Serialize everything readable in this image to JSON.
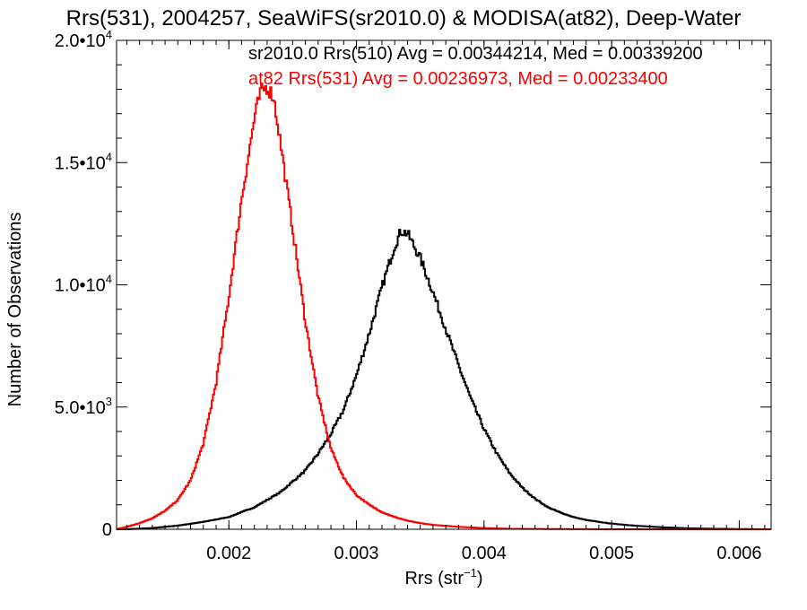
{
  "chart_data": {
    "type": "line",
    "title": "Rrs(531), 2004257, SeaWiFS(sr2010.0) & MODISA(at82), Deep-Water",
    "xlabel": {
      "base": "Rrs (str",
      "sup": "−1",
      "close": ")"
    },
    "ylabel": "Number of Observations",
    "xlim": [
      0.00112,
      0.00625
    ],
    "ylim": [
      0,
      20000
    ],
    "x_ticks": [
      {
        "value": 0.002,
        "label": "0.002"
      },
      {
        "value": 0.003,
        "label": "0.003"
      },
      {
        "value": 0.004,
        "label": "0.004"
      },
      {
        "value": 0.005,
        "label": "0.005"
      },
      {
        "value": 0.006,
        "label": "0.006"
      }
    ],
    "y_ticks": [
      {
        "value": 0,
        "mant": "0",
        "exp": ""
      },
      {
        "value": 5000,
        "mant": "5.0•10",
        "exp": "3"
      },
      {
        "value": 10000,
        "mant": "1.0•10",
        "exp": "4"
      },
      {
        "value": 15000,
        "mant": "1.5•10",
        "exp": "4"
      },
      {
        "value": 20000,
        "mant": "2.0•10",
        "exp": "4"
      }
    ],
    "grid": false,
    "series": [
      {
        "name": "sr2010.0 Rrs(510) Avg = 0.00344214, Med = 0.00339200",
        "color": "#000000",
        "step": "histogram",
        "x": [
          0.0012,
          0.0014,
          0.0016,
          0.0018,
          0.002,
          0.0022,
          0.0024,
          0.0026,
          0.0027,
          0.0028,
          0.0029,
          0.003,
          0.0031,
          0.0032,
          0.0033,
          0.00335,
          0.0034,
          0.0035,
          0.0036,
          0.0037,
          0.0038,
          0.0039,
          0.004,
          0.0041,
          0.0042,
          0.0043,
          0.0044,
          0.0045,
          0.0046,
          0.0047,
          0.0048,
          0.0049,
          0.005,
          0.0052,
          0.0054,
          0.0056,
          0.0058,
          0.006,
          0.0062
        ],
        "y": [
          0,
          50,
          150,
          300,
          500,
          900,
          1500,
          2400,
          3100,
          3900,
          4900,
          6300,
          8000,
          9900,
          11600,
          12200,
          12100,
          11100,
          9700,
          8200,
          6700,
          5300,
          4100,
          3100,
          2300,
          1700,
          1250,
          900,
          680,
          500,
          380,
          300,
          230,
          140,
          80,
          40,
          20,
          10,
          0
        ]
      },
      {
        "name": "at82 Rrs(531) Avg = 0.00236973, Med = 0.00233400",
        "color": "#ff0000",
        "step": "histogram",
        "x": [
          0.00112,
          0.0012,
          0.0013,
          0.0014,
          0.0015,
          0.0016,
          0.0017,
          0.0018,
          0.0019,
          0.002,
          0.0021,
          0.0022,
          0.00225,
          0.0023,
          0.00235,
          0.0024,
          0.0025,
          0.0026,
          0.0027,
          0.0028,
          0.0029,
          0.003,
          0.0031,
          0.0032,
          0.0033,
          0.0034,
          0.0035,
          0.0036,
          0.0038,
          0.004,
          0.0042,
          0.0045,
          0.005,
          0.0055,
          0.00625
        ],
        "y": [
          0,
          100,
          250,
          450,
          750,
          1200,
          2000,
          3500,
          6000,
          9500,
          13500,
          16800,
          17900,
          18100,
          17700,
          16000,
          12300,
          8500,
          5400,
          3300,
          2100,
          1400,
          1000,
          700,
          500,
          350,
          250,
          180,
          100,
          50,
          20,
          10,
          0,
          0,
          0
        ]
      }
    ]
  }
}
